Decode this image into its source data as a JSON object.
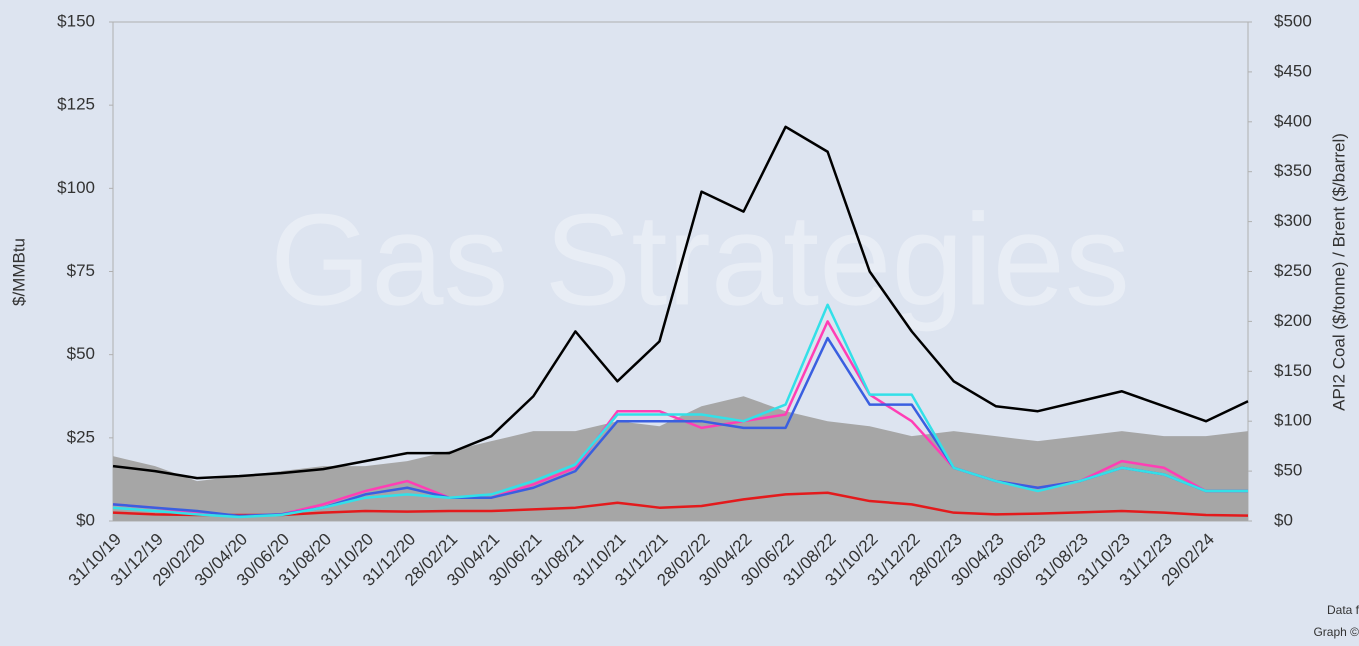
{
  "chart_data": {
    "type": "line",
    "watermark": "Gas Strategies",
    "ylabel": "$/MMBtu",
    "y2label": "API2 Coal ($/tonne) / Brent ($/barrel)",
    "footer": [
      "Data f",
      "Graph ©"
    ],
    "categories": [
      "31/10/19",
      "31/12/19",
      "29/02/20",
      "30/04/20",
      "30/06/20",
      "31/08/20",
      "31/10/20",
      "31/12/20",
      "28/02/21",
      "30/04/21",
      "30/06/21",
      "31/08/21",
      "31/10/21",
      "31/12/21",
      "28/02/22",
      "30/04/22",
      "30/06/22",
      "31/08/22",
      "31/10/22",
      "31/12/22",
      "28/02/23",
      "30/04/23",
      "30/06/23",
      "31/08/23",
      "31/10/23",
      "31/12/23",
      "29/02/24",
      null
    ],
    "ylim": [
      0,
      150
    ],
    "yticks": [
      {
        "value": 0,
        "label": "$0"
      },
      {
        "value": 25,
        "label": "$25"
      },
      {
        "value": 50,
        "label": "$50"
      },
      {
        "value": 75,
        "label": "$75"
      },
      {
        "value": 100,
        "label": "$100"
      },
      {
        "value": 125,
        "label": "$125"
      },
      {
        "value": 150,
        "label": "$150"
      }
    ],
    "y2lim": [
      0,
      500
    ],
    "y2ticks": [
      {
        "value": 0,
        "label": "$0"
      },
      {
        "value": 50,
        "label": "$50"
      },
      {
        "value": 100,
        "label": "$100"
      },
      {
        "value": 150,
        "label": "$150"
      },
      {
        "value": 200,
        "label": "$200"
      },
      {
        "value": 250,
        "label": "$250"
      },
      {
        "value": 300,
        "label": "$300"
      },
      {
        "value": 350,
        "label": "$350"
      },
      {
        "value": 400,
        "label": "$400"
      },
      {
        "value": 450,
        "label": "$450"
      },
      {
        "value": 500,
        "label": "$500"
      }
    ],
    "series": [
      {
        "type": "area",
        "axis": "y2",
        "color": "#a6a6a6",
        "values": [
          65,
          55,
          40,
          45,
          50,
          55,
          55,
          60,
          70,
          80,
          90,
          90,
          100,
          95,
          115,
          125,
          110,
          100,
          95,
          85,
          90,
          85,
          80,
          85,
          90,
          85,
          85,
          90
        ]
      },
      {
        "axis": "y2",
        "color": "#000000",
        "values": [
          55,
          50,
          43,
          45,
          48,
          52,
          60,
          68,
          68,
          85,
          125,
          190,
          140,
          180,
          330,
          310,
          395,
          370,
          250,
          190,
          140,
          115,
          110,
          120,
          130,
          115,
          100,
          120
        ]
      },
      {
        "color": "#e31a1c",
        "values": [
          2.5,
          2,
          1.8,
          1.8,
          1.8,
          2.5,
          3,
          2.8,
          3,
          3,
          3.5,
          4,
          5.5,
          4,
          4.5,
          6.5,
          8,
          8.5,
          6,
          5,
          2.5,
          2,
          2.2,
          2.6,
          3,
          2.5,
          1.8,
          1.6
        ]
      },
      {
        "color": "#ff3eb5",
        "values": [
          5,
          4,
          2.5,
          1.5,
          2,
          5,
          9,
          12,
          7,
          7,
          11,
          16,
          33,
          33,
          28,
          30,
          32,
          60,
          38,
          30,
          16,
          12,
          10,
          12,
          18,
          16,
          9,
          9
        ]
      },
      {
        "color": "#3a5fe0",
        "values": [
          5,
          4,
          3,
          1.5,
          2,
          4,
          8,
          10,
          7,
          7,
          10,
          15,
          30,
          30,
          30,
          28,
          28,
          55,
          35,
          35,
          16,
          12,
          10,
          12,
          16,
          14,
          9,
          9
        ]
      },
      {
        "color": "#33e0e8",
        "values": [
          4,
          3,
          2,
          1.2,
          1.8,
          4,
          7,
          8,
          7,
          8,
          12,
          17,
          32,
          32,
          32,
          30,
          35,
          65,
          38,
          38,
          16,
          12,
          9,
          12,
          16,
          14,
          9,
          9
        ]
      }
    ]
  }
}
